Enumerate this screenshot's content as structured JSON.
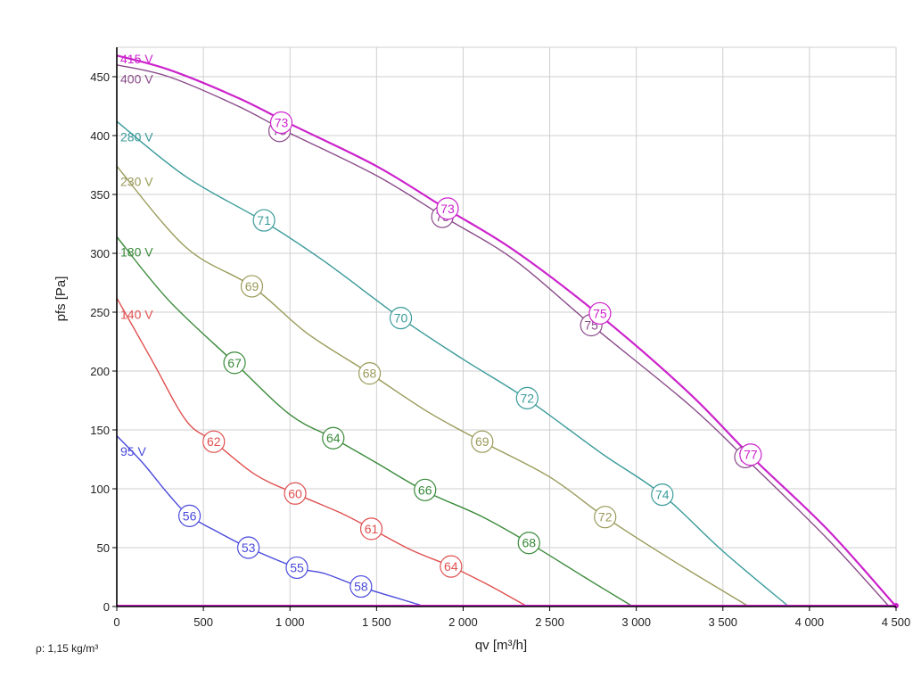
{
  "density_label": "ρ: 1,15 kg/m³",
  "chart_data": {
    "type": "line",
    "xlabel": "qv [m³/h]",
    "ylabel": "pfs [Pa]",
    "xlim": [
      0,
      4500
    ],
    "ylim": [
      0,
      475
    ],
    "x_ticks": [
      0,
      500,
      1000,
      1500,
      2000,
      2500,
      3000,
      3500,
      4000,
      4500
    ],
    "x_tick_labels": [
      "0",
      "500",
      "1 000",
      "1 500",
      "2 000",
      "2 500",
      "3 000",
      "3 500",
      "4 000",
      "4 500"
    ],
    "y_ticks": [
      0,
      50,
      100,
      150,
      200,
      250,
      300,
      350,
      400,
      450
    ],
    "y_tick_labels": [
      "0",
      "50",
      "100",
      "150",
      "200",
      "250",
      "300",
      "350",
      "400",
      "450"
    ],
    "grid": true,
    "series": [
      {
        "name": "415 V",
        "color": "#cc22cc",
        "width": 2.2,
        "points": [
          [
            0,
            468
          ],
          [
            300,
            456
          ],
          [
            700,
            432
          ],
          [
            1000,
            410
          ],
          [
            1500,
            374
          ],
          [
            1900,
            338
          ],
          [
            2300,
            302
          ],
          [
            2800,
            246
          ],
          [
            3300,
            182
          ],
          [
            3660,
            128
          ],
          [
            4100,
            66
          ],
          [
            4500,
            0
          ]
        ],
        "markers": [
          {
            "x": 950,
            "y": 411,
            "label": "73"
          },
          {
            "x": 1910,
            "y": 338,
            "label": "73"
          },
          {
            "x": 2790,
            "y": 249,
            "label": "75"
          },
          {
            "x": 3660,
            "y": 129,
            "label": "77"
          }
        ]
      },
      {
        "name": "400 V",
        "color": "#8a4a8a",
        "width": 1.4,
        "points": [
          [
            0,
            460
          ],
          [
            300,
            450
          ],
          [
            700,
            425
          ],
          [
            1000,
            402
          ],
          [
            1500,
            366
          ],
          [
            1900,
            330
          ],
          [
            2300,
            294
          ],
          [
            2750,
            238
          ],
          [
            3300,
            172
          ],
          [
            3630,
            126
          ],
          [
            4100,
            58
          ],
          [
            4460,
            0
          ]
        ],
        "markers": [
          {
            "x": 940,
            "y": 404,
            "label": "73"
          },
          {
            "x": 1880,
            "y": 331,
            "label": "73"
          },
          {
            "x": 2740,
            "y": 239,
            "label": "75"
          },
          {
            "x": 3630,
            "y": 127,
            "label": "77"
          }
        ]
      },
      {
        "name": "280 V",
        "color": "#3a9a9a",
        "width": 1.4,
        "points": [
          [
            0,
            412
          ],
          [
            400,
            365
          ],
          [
            850,
            327
          ],
          [
            1200,
            293
          ],
          [
            1640,
            245
          ],
          [
            2000,
            210
          ],
          [
            2370,
            176
          ],
          [
            2800,
            130
          ],
          [
            3150,
            95
          ],
          [
            3500,
            47
          ],
          [
            3880,
            0
          ]
        ],
        "markers": [
          {
            "x": 850,
            "y": 328,
            "label": "71"
          },
          {
            "x": 1640,
            "y": 245,
            "label": "70"
          },
          {
            "x": 2370,
            "y": 177,
            "label": "72"
          },
          {
            "x": 3150,
            "y": 95,
            "label": "74"
          }
        ]
      },
      {
        "name": "230 V",
        "color": "#9a9a5a",
        "width": 1.4,
        "points": [
          [
            0,
            374
          ],
          [
            400,
            305
          ],
          [
            780,
            272
          ],
          [
            1100,
            232
          ],
          [
            1460,
            198
          ],
          [
            1800,
            165
          ],
          [
            2110,
            140
          ],
          [
            2500,
            110
          ],
          [
            2820,
            76
          ],
          [
            3200,
            40
          ],
          [
            3650,
            0
          ]
        ],
        "markers": [
          {
            "x": 780,
            "y": 272,
            "label": "69"
          },
          {
            "x": 1460,
            "y": 198,
            "label": "68"
          },
          {
            "x": 2110,
            "y": 140,
            "label": "69"
          },
          {
            "x": 2820,
            "y": 76,
            "label": "72"
          }
        ]
      },
      {
        "name": "180 V",
        "color": "#3a8a3a",
        "width": 1.4,
        "points": [
          [
            0,
            314
          ],
          [
            300,
            260
          ],
          [
            680,
            207
          ],
          [
            1000,
            163
          ],
          [
            1250,
            143
          ],
          [
            1500,
            122
          ],
          [
            1780,
            98
          ],
          [
            2100,
            77
          ],
          [
            2380,
            54
          ],
          [
            2700,
            25
          ],
          [
            2980,
            0
          ]
        ],
        "markers": [
          {
            "x": 680,
            "y": 207,
            "label": "67"
          },
          {
            "x": 1250,
            "y": 143,
            "label": "64"
          },
          {
            "x": 1780,
            "y": 99,
            "label": "66"
          },
          {
            "x": 2380,
            "y": 54,
            "label": "68"
          }
        ]
      },
      {
        "name": "140 V",
        "color": "#e05050",
        "width": 1.4,
        "points": [
          [
            0,
            262
          ],
          [
            200,
            210
          ],
          [
            400,
            158
          ],
          [
            560,
            140
          ],
          [
            800,
            112
          ],
          [
            1030,
            96
          ],
          [
            1300,
            79
          ],
          [
            1470,
            66
          ],
          [
            1700,
            48
          ],
          [
            1930,
            34
          ],
          [
            2150,
            18
          ],
          [
            2370,
            0
          ]
        ],
        "markers": [
          {
            "x": 560,
            "y": 140,
            "label": "62"
          },
          {
            "x": 1030,
            "y": 96,
            "label": "60"
          },
          {
            "x": 1470,
            "y": 66,
            "label": "61"
          },
          {
            "x": 1930,
            "y": 34,
            "label": "64"
          }
        ]
      },
      {
        "name": "95 V",
        "color": "#4a4adc",
        "width": 1.4,
        "points": [
          [
            0,
            145
          ],
          [
            150,
            122
          ],
          [
            300,
            95
          ],
          [
            420,
            77
          ],
          [
            600,
            62
          ],
          [
            760,
            50
          ],
          [
            1040,
            33
          ],
          [
            1200,
            28
          ],
          [
            1400,
            17
          ],
          [
            1600,
            8
          ],
          [
            1780,
            0
          ]
        ],
        "markers": [
          {
            "x": 420,
            "y": 77,
            "label": "56"
          },
          {
            "x": 760,
            "y": 50,
            "label": "53"
          },
          {
            "x": 1040,
            "y": 33,
            "label": "55"
          },
          {
            "x": 1410,
            "y": 17,
            "label": "58"
          }
        ]
      }
    ],
    "curve_label_y": {
      "415 V": 465,
      "400 V": 448,
      "280 V": 399,
      "230 V": 361,
      "180 V": 301,
      "140 V": 248,
      "95 V": 132
    }
  }
}
